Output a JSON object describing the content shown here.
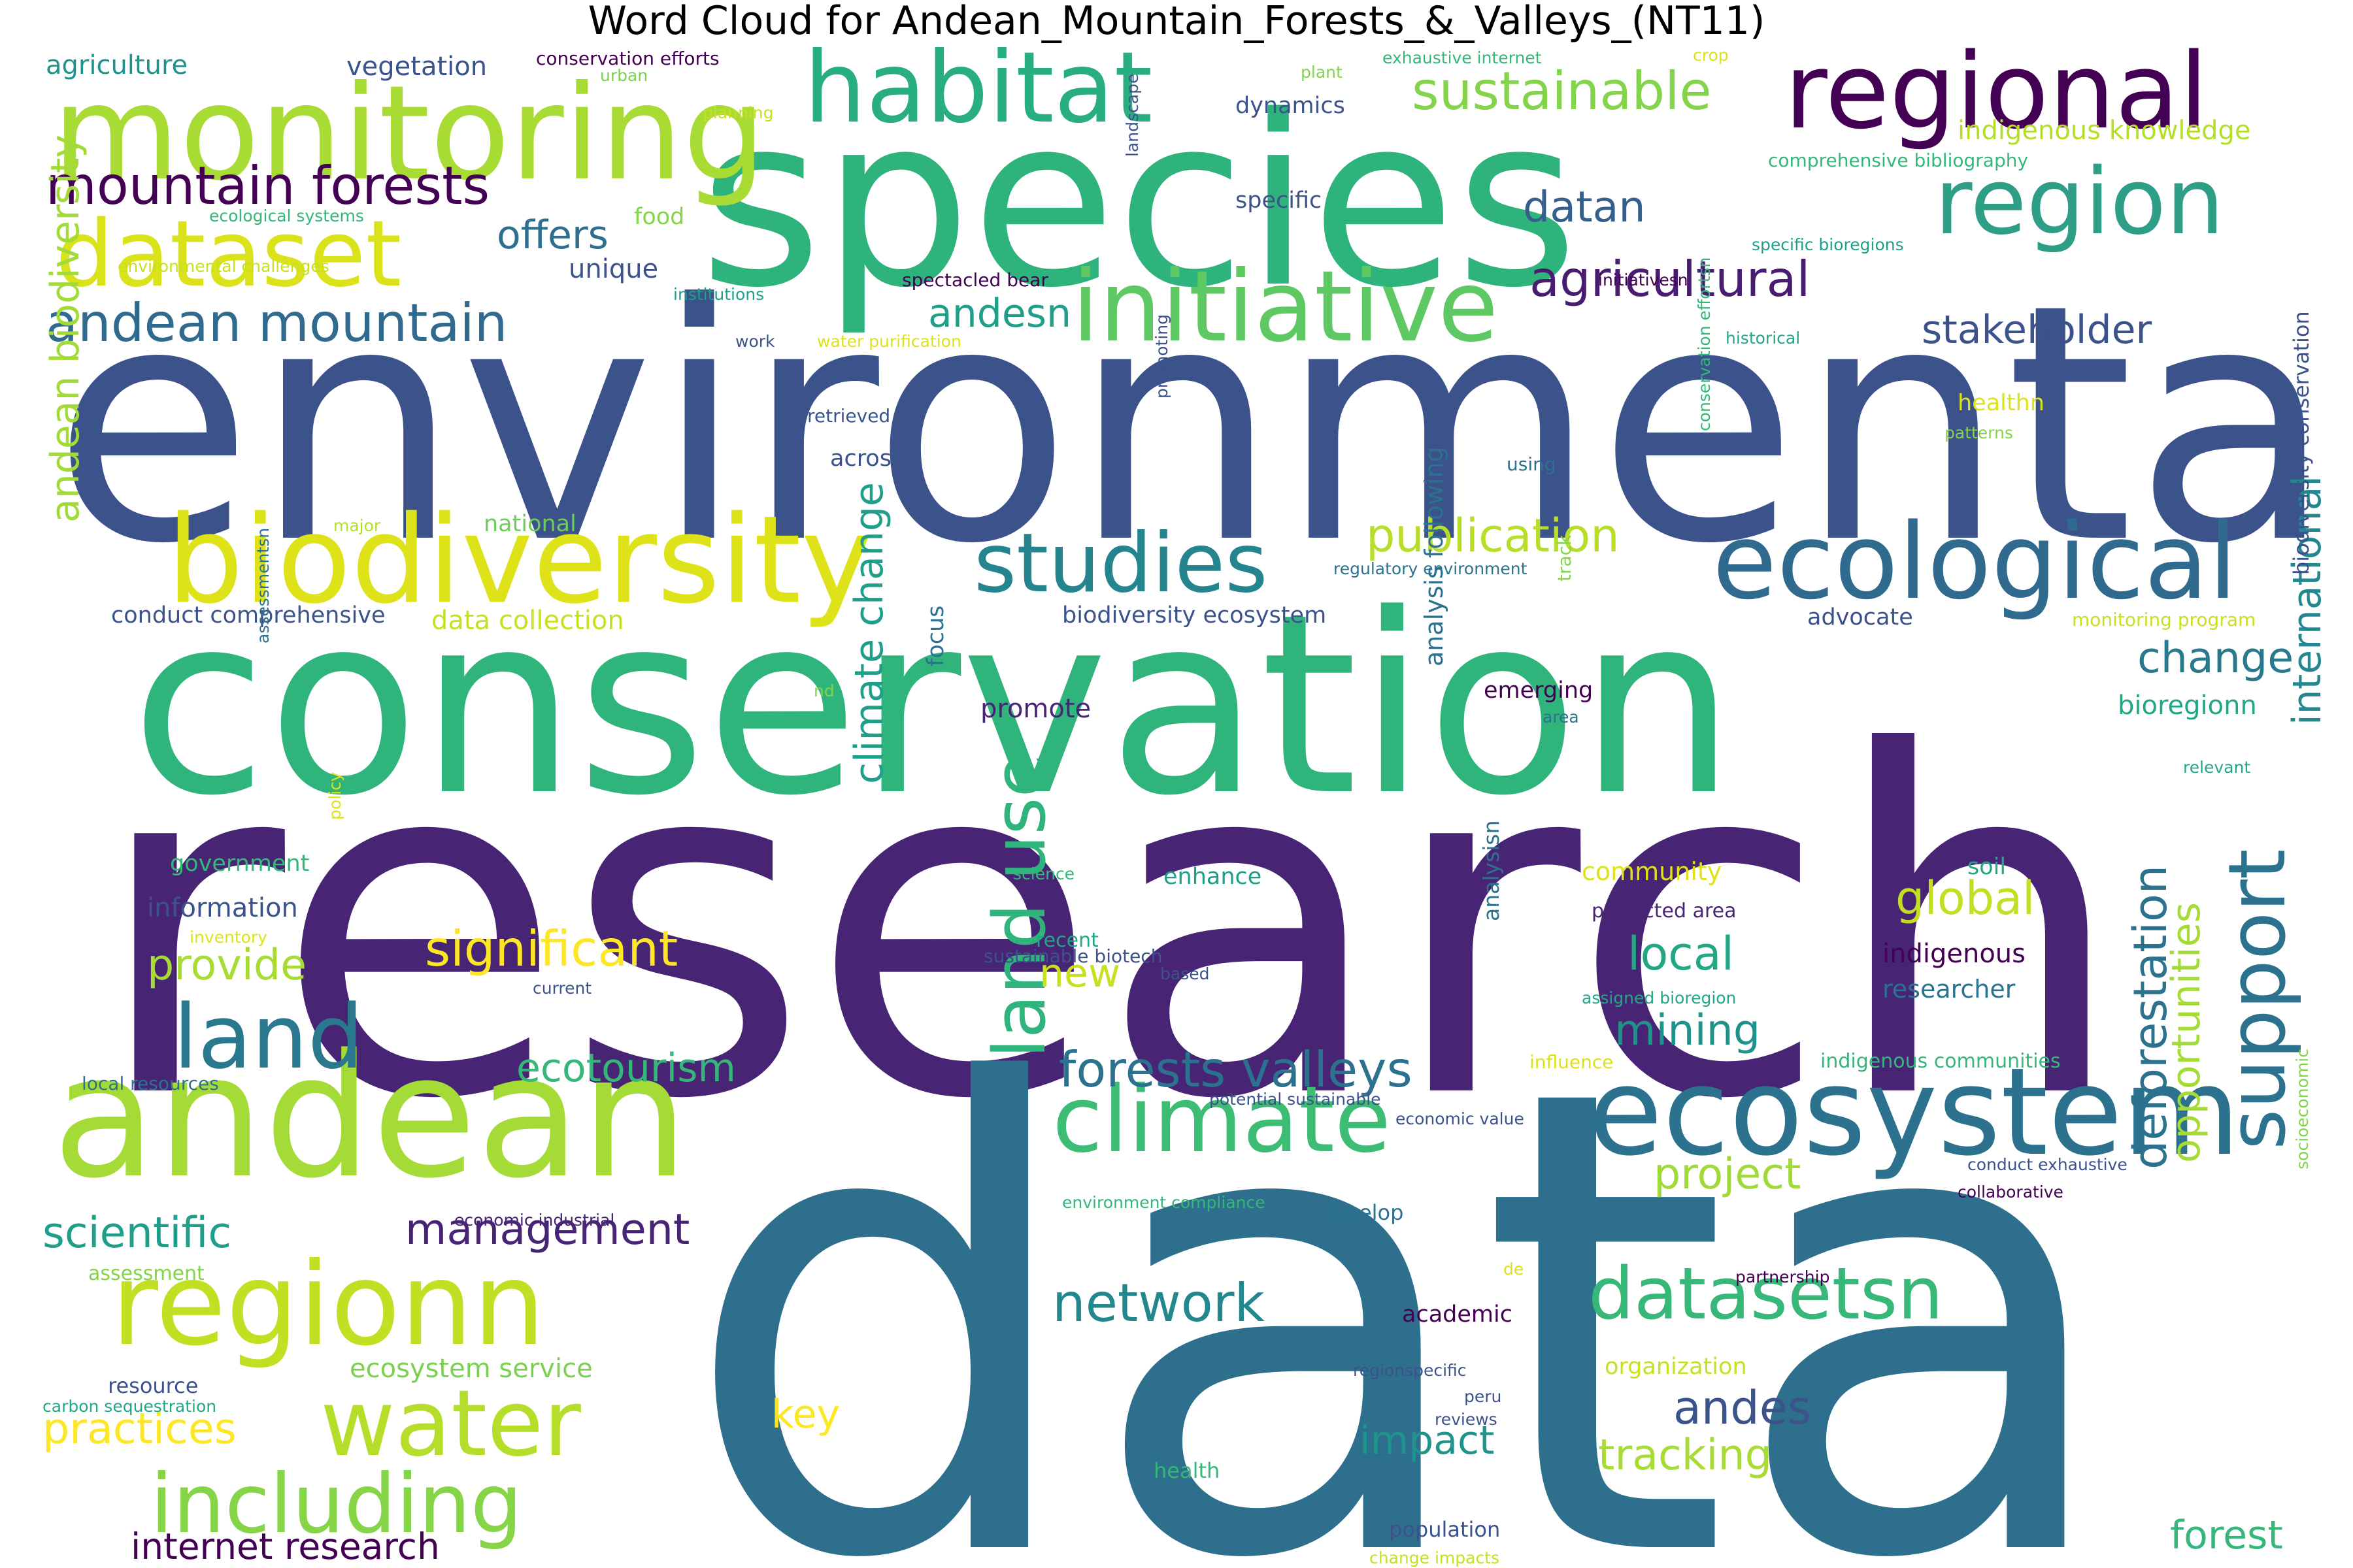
{
  "title": "Word Cloud for Andean_Mountain_Forests_&_Valleys_(NT11)",
  "words": [
    {
      "text": "research",
      "color": "#482475"
    },
    {
      "text": "data",
      "color": "#2e6f8e"
    },
    {
      "text": "environmental",
      "color": "#3b528b"
    },
    {
      "text": "conservation",
      "color": "#2fb47c"
    },
    {
      "text": "species",
      "color": "#2eb37c"
    },
    {
      "text": "andean",
      "color": "#a5db36"
    },
    {
      "text": "biodiversity",
      "color": "#dde318"
    },
    {
      "text": "monitoring",
      "color": "#a8db34"
    },
    {
      "text": "ecosystem",
      "color": "#2c728e"
    },
    {
      "text": "ecological",
      "color": "#306a8e"
    },
    {
      "text": "regional",
      "color": "#440154"
    },
    {
      "text": "region",
      "color": "#2e9e86"
    },
    {
      "text": "habitat",
      "color": "#28ae80"
    },
    {
      "text": "initiative",
      "color": "#5ec962"
    },
    {
      "text": "regionn",
      "color": "#c2df23"
    },
    {
      "text": "dataset",
      "color": "#dae319"
    },
    {
      "text": "studies",
      "color": "#25858e"
    },
    {
      "text": "climate",
      "color": "#3dbc74"
    },
    {
      "text": "water",
      "color": "#b5de2b"
    },
    {
      "text": "including",
      "color": "#86d549"
    },
    {
      "text": "land",
      "color": "#2a788e"
    },
    {
      "text": "datasetsn",
      "color": "#37b878"
    },
    {
      "text": "support",
      "color": "#2c728e"
    },
    {
      "text": "mountain forests",
      "color": "#440154"
    },
    {
      "text": "andean mountain",
      "color": "#306a8e"
    },
    {
      "text": "sustainable",
      "color": "#84d44b"
    },
    {
      "text": "land use",
      "color": "#2fb47c"
    },
    {
      "text": "forests valleys",
      "color": "#2c728e"
    },
    {
      "text": "andean biodiversity",
      "color": "#a2da37"
    },
    {
      "text": "climate change",
      "color": "#1f9e89"
    },
    {
      "text": "agricultural",
      "color": "#481c6e"
    },
    {
      "text": "publication",
      "color": "#b8de29"
    },
    {
      "text": "deforestation",
      "color": "#2c728e"
    },
    {
      "text": "opportunities",
      "color": "#a5db36"
    },
    {
      "text": "international",
      "color": "#24868e"
    },
    {
      "text": "significant",
      "color": "#fde725"
    },
    {
      "text": "network",
      "color": "#23888e"
    },
    {
      "text": "management",
      "color": "#482475"
    },
    {
      "text": "scientific",
      "color": "#1f9e89"
    },
    {
      "text": "ecotourism",
      "color": "#35b779"
    },
    {
      "text": "offers",
      "color": "#2e6f8e"
    },
    {
      "text": "datan",
      "color": "#355f8d"
    },
    {
      "text": "andesn",
      "color": "#1f9e89"
    },
    {
      "text": "stakeholder",
      "color": "#3b528b"
    },
    {
      "text": "change",
      "color": "#29798e"
    },
    {
      "text": "global",
      "color": "#c2df23"
    },
    {
      "text": "local",
      "color": "#22a785"
    },
    {
      "text": "mining",
      "color": "#20928c"
    },
    {
      "text": "project",
      "color": "#a0da39"
    },
    {
      "text": "tracking",
      "color": "#a8db34"
    },
    {
      "text": "andes",
      "color": "#3b528b"
    },
    {
      "text": "impact",
      "color": "#1f948c"
    },
    {
      "text": "practices",
      "color": "#fde725"
    },
    {
      "text": "provide",
      "color": "#a8db34"
    },
    {
      "text": "internet research",
      "color": "#440154"
    },
    {
      "text": "key",
      "color": "#fde725"
    },
    {
      "text": "new",
      "color": "#c8e020"
    },
    {
      "text": "forest",
      "color": "#35b779"
    },
    {
      "text": "ecosystem service",
      "color": "#7ad151"
    },
    {
      "text": "indigenous knowledge",
      "color": "#b5de2b"
    },
    {
      "text": "agriculture",
      "color": "#21918c"
    },
    {
      "text": "vegetation",
      "color": "#3b528b"
    },
    {
      "text": "unique",
      "color": "#3b528b"
    },
    {
      "text": "food",
      "color": "#84d44b"
    },
    {
      "text": "specific",
      "color": "#3b528b"
    },
    {
      "text": "dynamics",
      "color": "#3b528b"
    },
    {
      "text": "across",
      "color": "#3b528b"
    },
    {
      "text": "national",
      "color": "#6ccd5a"
    },
    {
      "text": "conduct comprehensive",
      "color": "#3b528b"
    },
    {
      "text": "data collection",
      "color": "#c8e020"
    },
    {
      "text": "biodiversity ecosystem",
      "color": "#3b528b"
    },
    {
      "text": "promote",
      "color": "#482475"
    },
    {
      "text": "focus",
      "color": "#2c728e"
    },
    {
      "text": "analysis following",
      "color": "#2c728e"
    },
    {
      "text": "emerging",
      "color": "#440154"
    },
    {
      "text": "advocate",
      "color": "#3b528b"
    },
    {
      "text": "bioregionn",
      "color": "#22a785"
    },
    {
      "text": "biodiversity conservation",
      "color": "#3b528b"
    },
    {
      "text": "government",
      "color": "#35b779"
    },
    {
      "text": "information",
      "color": "#3b528b"
    },
    {
      "text": "enhance",
      "color": "#1f9e89"
    },
    {
      "text": "community",
      "color": "#dde318"
    },
    {
      "text": "soil",
      "color": "#22a785"
    },
    {
      "text": "indigenous",
      "color": "#440154"
    },
    {
      "text": "researcher",
      "color": "#2c728e"
    },
    {
      "text": "recent",
      "color": "#22a785"
    },
    {
      "text": "protected area",
      "color": "#482475"
    },
    {
      "text": "healthn",
      "color": "#dde318"
    },
    {
      "text": "health",
      "color": "#35b779"
    },
    {
      "text": "academic",
      "color": "#440154"
    },
    {
      "text": "develop",
      "color": "#2c728e"
    },
    {
      "text": "organization",
      "color": "#c8e020"
    },
    {
      "text": "population",
      "color": "#3b528b"
    },
    {
      "text": "resource",
      "color": "#3b528b"
    },
    {
      "text": "assessment",
      "color": "#84d44b"
    },
    {
      "text": "carbon sequestration",
      "color": "#22a785"
    },
    {
      "text": "conservation efforts",
      "color": "#440154"
    },
    {
      "text": "urban",
      "color": "#7ad151"
    },
    {
      "text": "planning",
      "color": "#c8e020"
    },
    {
      "text": "plant",
      "color": "#84d44b"
    },
    {
      "text": "exhaustive internet",
      "color": "#35b779"
    },
    {
      "text": "crop",
      "color": "#dde318"
    },
    {
      "text": "comprehensive bibliography",
      "color": "#35b779"
    },
    {
      "text": "landscape",
      "color": "#3b528b"
    },
    {
      "text": "ecological systems",
      "color": "#35b779"
    },
    {
      "text": "environmental challenges",
      "color": "#c8e020"
    },
    {
      "text": "institutions",
      "color": "#1f9e89"
    },
    {
      "text": "spectacled bear",
      "color": "#440154"
    },
    {
      "text": "specific bioregions",
      "color": "#1f9e89"
    },
    {
      "text": "initiativesn",
      "color": "#440154"
    },
    {
      "text": "historical",
      "color": "#22a785"
    },
    {
      "text": "work",
      "color": "#3b528b"
    },
    {
      "text": "water purification",
      "color": "#dde318"
    },
    {
      "text": "retrieved",
      "color": "#3b528b"
    },
    {
      "text": "promoting",
      "color": "#3b528b"
    },
    {
      "text": "using",
      "color": "#2c728e"
    },
    {
      "text": "patterns",
      "color": "#84d44b"
    },
    {
      "text": "major",
      "color": "#b5de2b"
    },
    {
      "text": "regulatory environment",
      "color": "#2c728e"
    },
    {
      "text": "monitoring program",
      "color": "#c8e020"
    },
    {
      "text": "conservation effortsn",
      "color": "#35b779"
    },
    {
      "text": "track",
      "color": "#84d44b"
    },
    {
      "text": "area",
      "color": "#2c728e"
    },
    {
      "text": "assessmentsn",
      "color": "#2c728e"
    },
    {
      "text": "nd",
      "color": "#84d44b"
    },
    {
      "text": "relevant",
      "color": "#22a785"
    },
    {
      "text": "policy",
      "color": "#dde318"
    },
    {
      "text": "science",
      "color": "#35b779"
    },
    {
      "text": "inventory",
      "color": "#dde318"
    },
    {
      "text": "sustainable biotech",
      "color": "#3b528b"
    },
    {
      "text": "based",
      "color": "#3b528b"
    },
    {
      "text": "current",
      "color": "#3b528b"
    },
    {
      "text": "analysisn",
      "color": "#2c728e"
    },
    {
      "text": "assigned bioregion",
      "color": "#22a785"
    },
    {
      "text": "local resources",
      "color": "#2c728e"
    },
    {
      "text": "influence",
      "color": "#dde318"
    },
    {
      "text": "indigenous communities",
      "color": "#35b779"
    },
    {
      "text": "potential sustainable",
      "color": "#3b528b"
    },
    {
      "text": "economic value",
      "color": "#3b528b"
    },
    {
      "text": "conduct exhaustive",
      "color": "#3b528b"
    },
    {
      "text": "collaborative",
      "color": "#440154"
    },
    {
      "text": "socioeconomic",
      "color": "#84d44b"
    },
    {
      "text": "environment compliance",
      "color": "#35b779"
    },
    {
      "text": "economic industrial",
      "color": "#482475"
    },
    {
      "text": "de",
      "color": "#dde318"
    },
    {
      "text": "partnership",
      "color": "#440154"
    },
    {
      "text": "regionspecific",
      "color": "#3b528b"
    },
    {
      "text": "peru",
      "color": "#3b528b"
    },
    {
      "text": "reviews",
      "color": "#3b528b"
    },
    {
      "text": "change impacts",
      "color": "#c8e020"
    }
  ]
}
